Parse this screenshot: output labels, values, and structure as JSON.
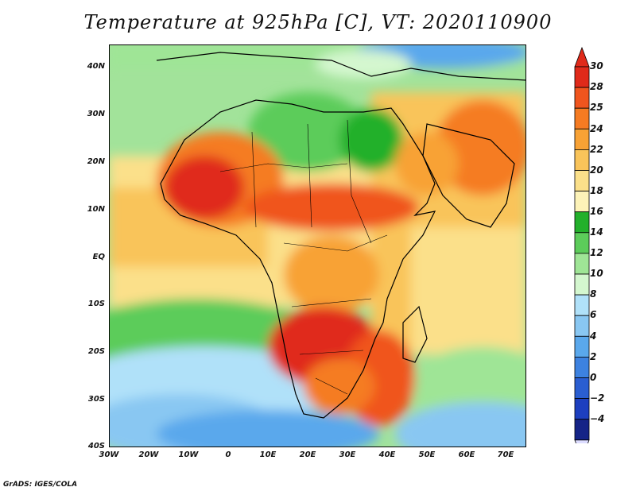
{
  "title": "Temperature at 925hPa [C], VT: 2020110900",
  "credit": "GrADS: IGES/COLA",
  "map": {
    "region": "Africa",
    "y_axis_labels": [
      "40N",
      "30N",
      "20N",
      "10N",
      "EQ",
      "10S",
      "20S",
      "30S",
      "40S"
    ],
    "x_axis_labels": [
      "30W",
      "20W",
      "10W",
      "0",
      "10E",
      "20E",
      "30E",
      "40E",
      "50E",
      "60E",
      "70E"
    ]
  },
  "colorbar": {
    "labels": [
      "30",
      "28",
      "25",
      "24",
      "22",
      "20",
      "18",
      "16",
      "14",
      "12",
      "10",
      "8",
      "6",
      "4",
      "2",
      "0",
      "−2",
      "−4"
    ],
    "colors": [
      "#e02a1a",
      "#f0551e",
      "#f57b22",
      "#f8a235",
      "#f9c45a",
      "#fbe08a",
      "#fdf3b8",
      "#23b02b",
      "#5ccc5a",
      "#9fe596",
      "#d4f7cf",
      "#b0e1f9",
      "#89c7f2",
      "#5aa8ec",
      "#3d82e0",
      "#2a5ed1",
      "#1d3fbf",
      "#152487"
    ]
  }
}
